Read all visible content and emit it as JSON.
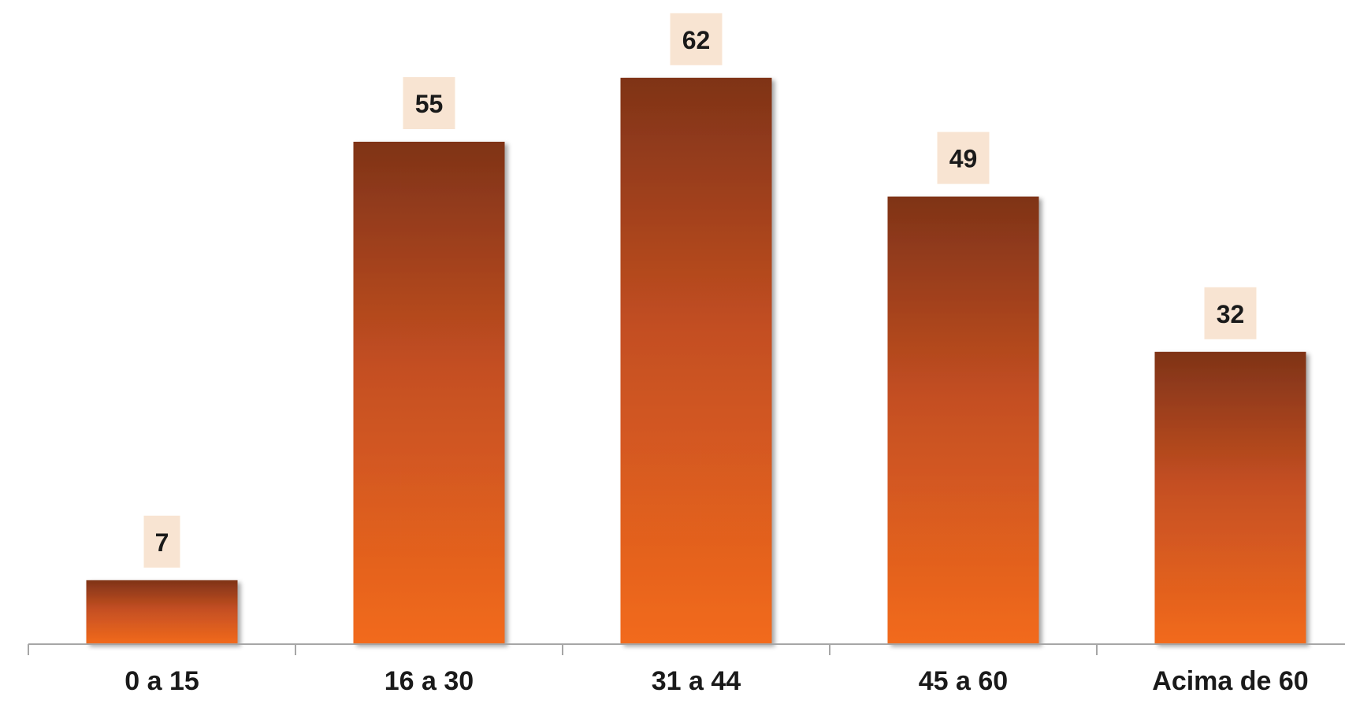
{
  "chart_data": {
    "type": "bar",
    "categories": [
      "0 a 15",
      "16 a 30",
      "31 a 44",
      "45 a 60",
      "Acima de 60"
    ],
    "values": [
      7,
      55,
      62,
      49,
      32
    ],
    "title": "",
    "xlabel": "",
    "ylabel": "",
    "ylim": [
      0,
      70
    ],
    "grid": false,
    "legend": "none",
    "data_labels": [
      "7",
      "55",
      "62",
      "49",
      "32"
    ]
  },
  "colors": {
    "bar_top": "#7f3318",
    "bar_bottom": "#f26a1e",
    "label_bg": "#f8e4d2",
    "axis": "#a6a6a6"
  }
}
